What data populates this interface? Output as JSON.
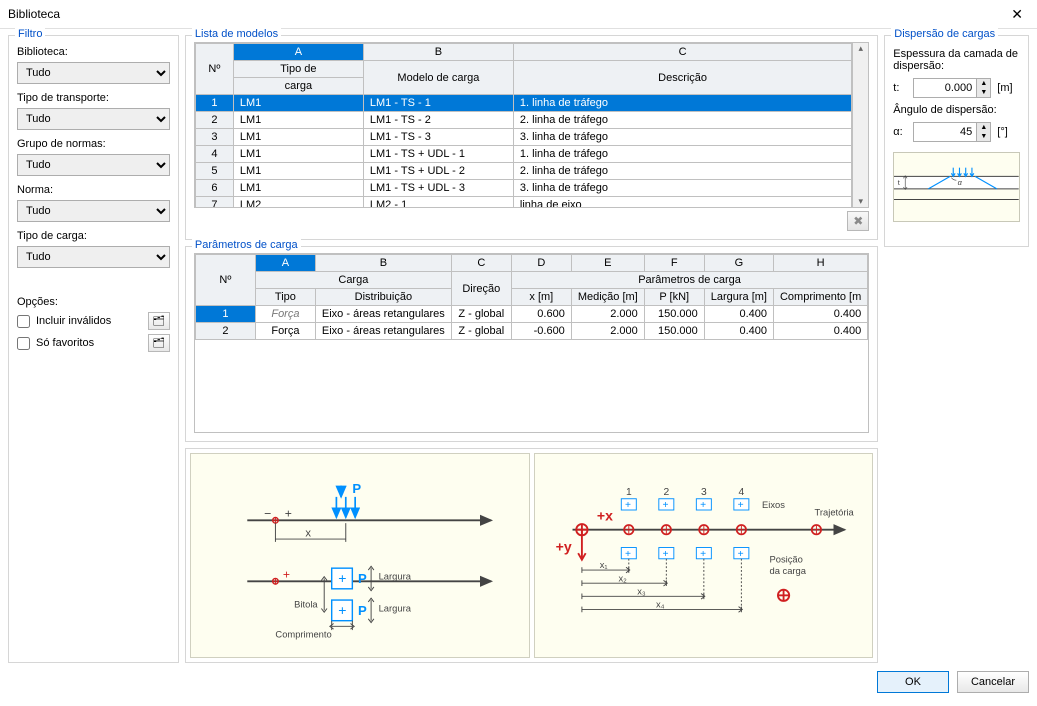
{
  "window": {
    "title": "Biblioteca"
  },
  "filter": {
    "group_title": "Filtro",
    "biblioteca_label": "Biblioteca:",
    "biblioteca_value": "Tudo",
    "transporte_label": "Tipo de transporte:",
    "transporte_value": "Tudo",
    "normas_label": "Grupo de normas:",
    "normas_value": "Tudo",
    "norma_label": "Norma:",
    "norma_value": "Tudo",
    "tipocarga_label": "Tipo de carga:",
    "tipocarga_value": "Tudo",
    "opcoes_label": "Opções:",
    "incluir_invalidos_label": "Incluir inválidos",
    "so_favoritos_label": "Só favoritos"
  },
  "models": {
    "group_title": "Lista de modelos",
    "row_header": "Nº",
    "col_letters": [
      "A",
      "B",
      "C"
    ],
    "col_header_a1": "Tipo de",
    "col_header_a2": "carga",
    "col_header_b": "Modelo de carga",
    "col_header_c": "Descrição",
    "rows": [
      {
        "n": "1",
        "a": "LM1",
        "b": "LM1 - TS - 1",
        "c": "1. linha de tráfego",
        "sel": true
      },
      {
        "n": "2",
        "a": "LM1",
        "b": "LM1 - TS - 2",
        "c": "2. linha de tráfego"
      },
      {
        "n": "3",
        "a": "LM1",
        "b": "LM1 - TS - 3",
        "c": "3. linha de tráfego"
      },
      {
        "n": "4",
        "a": "LM1",
        "b": "LM1 - TS + UDL - 1",
        "c": "1. linha de tráfego"
      },
      {
        "n": "5",
        "a": "LM1",
        "b": "LM1 - TS + UDL - 2",
        "c": "2. linha de tráfego"
      },
      {
        "n": "6",
        "a": "LM1",
        "b": "LM1 - TS + UDL - 3",
        "c": "3. linha de tráfego"
      },
      {
        "n": "7",
        "a": "LM2",
        "b": "LM2 - 1",
        "c": "linha de eixo"
      }
    ]
  },
  "params": {
    "group_title": "Parâmetros de carga",
    "row_header": "Nº",
    "col_letters": [
      "A",
      "B",
      "C",
      "D",
      "E",
      "F",
      "G",
      "H"
    ],
    "group1": "Carga",
    "group2": "Parâmetros de carga",
    "col_tipo": "Tipo",
    "col_distrib": "Distribuição",
    "col_direcao": "Direção",
    "col_x": "x [m]",
    "col_medicao": "Medição [m]",
    "col_p": "P [kN]",
    "col_largura": "Largura [m]",
    "col_comprimento": "Comprimento [m",
    "rows": [
      {
        "n": "1",
        "tipo": "Força",
        "tipo_ital": true,
        "dist": "Eixo - áreas retangulares",
        "dir": "Z - global",
        "x": "0.600",
        "med": "2.000",
        "p": "150.000",
        "larg": "0.400",
        "comp": "0.400",
        "sel": true
      },
      {
        "n": "2",
        "tipo": "Força",
        "dist": "Eixo - áreas retangulares",
        "dir": "Z - global",
        "x": "-0.600",
        "med": "2.000",
        "p": "150.000",
        "larg": "0.400",
        "comp": "0.400"
      }
    ]
  },
  "dispersion": {
    "group_title": "Dispersão de cargas",
    "espessura_label": "Espessura da camada de dispersão:",
    "t_label": "t:",
    "t_value": "0.000",
    "t_unit": "[m]",
    "angulo_label": "Ângulo de dispersão:",
    "a_label": "α:",
    "a_value": "45",
    "a_unit": "[°]"
  },
  "diagram1": {
    "P": "P",
    "x": "x",
    "largura": "Largura",
    "bitola": "Bitola",
    "comprimento": "Comprimento",
    "axis_color": "#444444",
    "arrow_color": "#0090ff",
    "box_stroke": "#0090ff",
    "box_fill": "#ffffff",
    "p_color": "#0090ff",
    "plusminus_color": "#404040",
    "origin_color": "#d02020"
  },
  "diagram2": {
    "plus_x": "+x",
    "plus_y": "+y",
    "eixos": "Eixos",
    "trajetoria": "Trajetória",
    "posicao": "Posição",
    "dacarga": "da carga",
    "x1": "x₁",
    "x2": "x₂",
    "x3": "x₃",
    "x4": "x₄",
    "n1": "1",
    "n2": "2",
    "n3": "3",
    "n4": "4",
    "axis_color": "#444444",
    "red": "#d02020",
    "blue": "#0090ff"
  },
  "footer": {
    "ok": "OK",
    "cancel": "Cancelar"
  },
  "colors": {
    "selection": "#0078d7",
    "group_title": "#0050c8",
    "grid_border": "#c0c0c0"
  }
}
